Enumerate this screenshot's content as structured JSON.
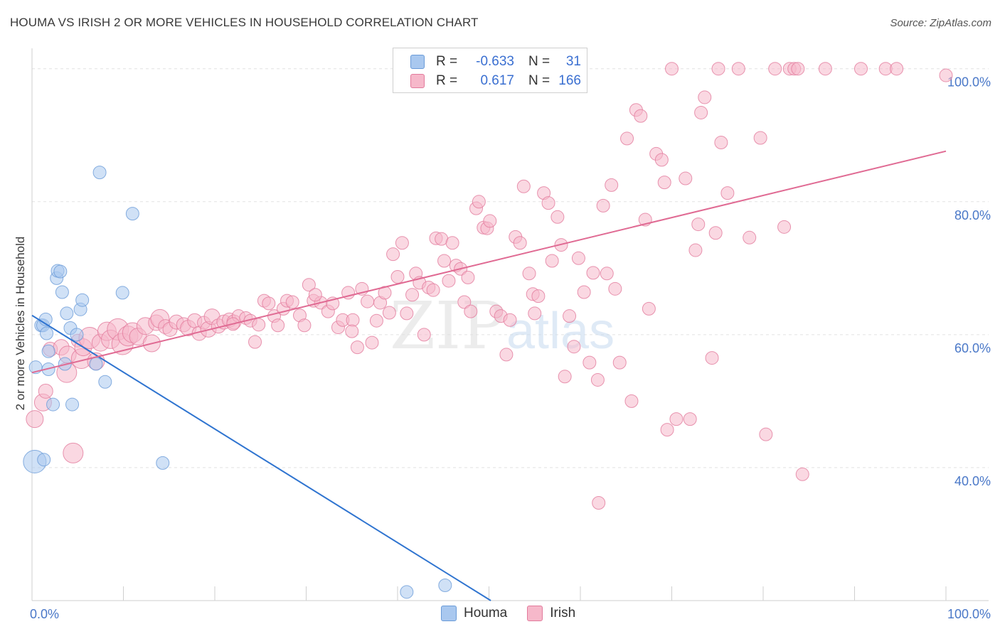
{
  "title": "HOUMA VS IRISH 2 OR MORE VEHICLES IN HOUSEHOLD CORRELATION CHART",
  "source": "Source: ZipAtlas.com",
  "watermark": {
    "zip": "ZIP",
    "atlas": "atlas"
  },
  "legend": {
    "rows": [
      {
        "series": "Houma",
        "r_label": "R =",
        "r_value": "-0.633",
        "n_label": "N =",
        "n_value": "31",
        "color": "#a9c8ef",
        "border": "#6a9bd8"
      },
      {
        "series": "Irish",
        "r_label": "R =",
        "r_value": "0.617",
        "n_label": "N =",
        "n_value": "166",
        "color": "#f6b8ca",
        "border": "#e27a9c"
      }
    ]
  },
  "bottom_legend": [
    {
      "label": "Houma",
      "color": "#a9c8ef",
      "border": "#6a9bd8"
    },
    {
      "label": "Irish",
      "color": "#f6b8ca",
      "border": "#e27a9c"
    }
  ],
  "chart_data": {
    "type": "scatter",
    "title": "HOUMA VS IRISH 2 OR MORE VEHICLES IN HOUSEHOLD CORRELATION CHART",
    "xlabel": "",
    "ylabel": "2 or more Vehicles in Household",
    "xlim": [
      0,
      100
    ],
    "ylim": [
      20,
      102
    ],
    "x_tick_labels": [
      "0.0%",
      "100.0%"
    ],
    "y_tick_labels": [
      "40.0%",
      "60.0%",
      "80.0%",
      "100.0%"
    ],
    "y_ticks": [
      40,
      60,
      80,
      100
    ],
    "grid": true,
    "legend_position": "top-center",
    "series": [
      {
        "name": "Houma",
        "color": "#a9c8ef",
        "stroke": "#6a9bd8",
        "line_color": "#2f74d0",
        "trend": {
          "x": [
            0,
            50.2
          ],
          "y": [
            62.9,
            20.0
          ]
        },
        "points": [
          [
            0.3,
            40.9,
            16
          ],
          [
            0.4,
            55.1,
            9
          ],
          [
            1.0,
            61.4,
            9
          ],
          [
            1.2,
            61.4,
            9
          ],
          [
            1.3,
            41.2,
            9
          ],
          [
            1.5,
            62.3,
            9
          ],
          [
            1.6,
            60.2,
            9
          ],
          [
            1.8,
            57.5,
            9
          ],
          [
            1.8,
            54.8,
            9
          ],
          [
            2.3,
            49.5,
            9
          ],
          [
            2.7,
            68.5,
            9
          ],
          [
            2.8,
            69.6,
            9
          ],
          [
            3.1,
            69.5,
            9
          ],
          [
            3.3,
            66.4,
            9
          ],
          [
            3.6,
            55.6,
            9
          ],
          [
            3.8,
            63.2,
            9
          ],
          [
            4.2,
            61.0,
            9
          ],
          [
            4.4,
            49.5,
            9
          ],
          [
            4.9,
            60.0,
            9
          ],
          [
            5.3,
            63.8,
            9
          ],
          [
            5.5,
            65.2,
            9
          ],
          [
            7.0,
            55.6,
            9
          ],
          [
            7.4,
            84.4,
            9
          ],
          [
            8.0,
            52.9,
            9
          ],
          [
            9.9,
            66.3,
            9
          ],
          [
            11.0,
            78.2,
            9
          ],
          [
            14.3,
            40.7,
            9
          ],
          [
            41.0,
            21.3,
            9
          ],
          [
            45.2,
            22.3,
            9
          ]
        ]
      },
      {
        "name": "Irish",
        "color": "#f6b8ca",
        "stroke": "#e27a9c",
        "line_color": "#e06a93",
        "trend": {
          "x": [
            0,
            100
          ],
          "y": [
            54.3,
            87.6
          ]
        },
        "points": [
          [
            0.3,
            47.3,
            12
          ],
          [
            1.2,
            49.8,
            12
          ],
          [
            1.5,
            51.5,
            10
          ],
          [
            2.0,
            57.8,
            10
          ],
          [
            3.2,
            58.1,
            11
          ],
          [
            3.8,
            54.3,
            14
          ],
          [
            3.9,
            57.0,
            12
          ],
          [
            4.5,
            42.2,
            14
          ],
          [
            5.0,
            59.1,
            9
          ],
          [
            5.4,
            56.4,
            14
          ],
          [
            5.6,
            58.1,
            12
          ],
          [
            6.3,
            59.5,
            15
          ],
          [
            7.0,
            56.0,
            12
          ],
          [
            7.5,
            58.8,
            12
          ],
          [
            8.2,
            60.5,
            13
          ],
          [
            8.6,
            59.3,
            13
          ],
          [
            9.4,
            60.8,
            15
          ],
          [
            9.9,
            58.6,
            15
          ],
          [
            10.5,
            59.8,
            14
          ],
          [
            11.0,
            60.3,
            14
          ],
          [
            11.6,
            59.7,
            12
          ],
          [
            12.4,
            61.3,
            12
          ],
          [
            13.1,
            58.7,
            12
          ],
          [
            13.6,
            61.8,
            11
          ],
          [
            14.0,
            62.4,
            13
          ],
          [
            14.6,
            61.2,
            10
          ],
          [
            15.1,
            60.8,
            10
          ],
          [
            15.8,
            61.9,
            10
          ],
          [
            16.6,
            61.5,
            10
          ],
          [
            17.1,
            61.0,
            11
          ],
          [
            17.8,
            62.1,
            10
          ],
          [
            18.3,
            60.2,
            10
          ],
          [
            18.8,
            61.8,
            9
          ],
          [
            19.3,
            60.8,
            11
          ],
          [
            19.7,
            62.7,
            11
          ],
          [
            20.4,
            61.3,
            10
          ],
          [
            21.0,
            61.9,
            10
          ],
          [
            21.6,
            62.2,
            10
          ],
          [
            22.1,
            61.9,
            10
          ],
          [
            22.6,
            62.8,
            9
          ],
          [
            22.0,
            61.6,
            9
          ],
          [
            23.4,
            62.5,
            9
          ],
          [
            23.9,
            62.1,
            9
          ],
          [
            24.4,
            58.9,
            9
          ],
          [
            24.8,
            61.5,
            9
          ],
          [
            25.4,
            65.1,
            9
          ],
          [
            25.9,
            64.7,
            9
          ],
          [
            26.5,
            62.8,
            9
          ],
          [
            26.9,
            61.4,
            9
          ],
          [
            27.5,
            63.9,
            9
          ],
          [
            27.9,
            65.1,
            9
          ],
          [
            28.5,
            64.9,
            9
          ],
          [
            29.3,
            62.9,
            9
          ],
          [
            29.8,
            61.4,
            9
          ],
          [
            30.3,
            67.5,
            9
          ],
          [
            30.8,
            65.1,
            9
          ],
          [
            31.6,
            64.8,
            9
          ],
          [
            32.4,
            63.5,
            9
          ],
          [
            32.9,
            64.7,
            9
          ],
          [
            33.5,
            61.1,
            9
          ],
          [
            34.0,
            62.2,
            9
          ],
          [
            34.6,
            66.3,
            9
          ],
          [
            35.1,
            62.2,
            9
          ],
          [
            35.6,
            58.1,
            9
          ],
          [
            36.1,
            66.9,
            9
          ],
          [
            36.7,
            65.0,
            9
          ],
          [
            37.2,
            58.8,
            9
          ],
          [
            37.7,
            62.1,
            9
          ],
          [
            38.1,
            64.8,
            9
          ],
          [
            38.6,
            66.3,
            9
          ],
          [
            39.1,
            63.3,
            9
          ],
          [
            39.5,
            72.1,
            9
          ],
          [
            40.0,
            68.7,
            9
          ],
          [
            40.5,
            73.8,
            9
          ],
          [
            41.0,
            63.2,
            9
          ],
          [
            41.6,
            66.0,
            9
          ],
          [
            42.0,
            69.2,
            9
          ],
          [
            42.4,
            67.8,
            9
          ],
          [
            42.9,
            60.0,
            9
          ],
          [
            43.4,
            67.1,
            9
          ],
          [
            43.9,
            66.7,
            9
          ],
          [
            44.2,
            74.5,
            9
          ],
          [
            44.8,
            74.4,
            9
          ],
          [
            45.1,
            71.1,
            9
          ],
          [
            45.6,
            68.1,
            9
          ],
          [
            46.0,
            73.8,
            9
          ],
          [
            46.4,
            70.4,
            9
          ],
          [
            46.9,
            69.9,
            9
          ],
          [
            47.3,
            64.9,
            9
          ],
          [
            47.7,
            68.6,
            9
          ],
          [
            48.0,
            63.5,
            9
          ],
          [
            48.6,
            79.0,
            9
          ],
          [
            48.9,
            80.0,
            9
          ],
          [
            49.4,
            76.1,
            9
          ],
          [
            49.8,
            76.0,
            9
          ],
          [
            50.1,
            77.1,
            9
          ],
          [
            50.8,
            63.5,
            9
          ],
          [
            51.3,
            62.8,
            9
          ],
          [
            51.9,
            57.0,
            9
          ],
          [
            52.3,
            62.2,
            9
          ],
          [
            52.9,
            74.7,
            9
          ],
          [
            53.4,
            73.8,
            9
          ],
          [
            53.8,
            82.3,
            9
          ],
          [
            54.4,
            69.2,
            9
          ],
          [
            54.8,
            66.1,
            9
          ],
          [
            55.4,
            65.8,
            9
          ],
          [
            56.0,
            81.3,
            9
          ],
          [
            56.5,
            79.8,
            9
          ],
          [
            56.9,
            71.1,
            9
          ],
          [
            57.5,
            77.7,
            9
          ],
          [
            57.9,
            73.5,
            9
          ],
          [
            58.3,
            53.7,
            9
          ],
          [
            58.8,
            62.8,
            9
          ],
          [
            59.3,
            58.2,
            9
          ],
          [
            59.8,
            71.5,
            9
          ],
          [
            60.4,
            66.4,
            9
          ],
          [
            61.0,
            55.8,
            9
          ],
          [
            61.4,
            69.3,
            9
          ],
          [
            61.9,
            53.2,
            9
          ],
          [
            62.5,
            79.4,
            9
          ],
          [
            62.9,
            69.2,
            9
          ],
          [
            63.4,
            82.5,
            9
          ],
          [
            63.8,
            66.9,
            9
          ],
          [
            64.3,
            55.8,
            9
          ],
          [
            65.1,
            89.5,
            9
          ],
          [
            65.6,
            50.0,
            9
          ],
          [
            66.1,
            93.8,
            9
          ],
          [
            66.6,
            92.9,
            9
          ],
          [
            67.1,
            77.3,
            9
          ],
          [
            67.5,
            63.9,
            9
          ],
          [
            68.3,
            87.2,
            9
          ],
          [
            68.9,
            86.3,
            9
          ],
          [
            69.2,
            82.9,
            9
          ],
          [
            69.5,
            45.7,
            9
          ],
          [
            70.0,
            100.0,
            9
          ],
          [
            70.5,
            47.3,
            9
          ],
          [
            71.5,
            83.5,
            9
          ],
          [
            72.0,
            47.3,
            9
          ],
          [
            72.6,
            72.7,
            9
          ],
          [
            72.9,
            76.6,
            9
          ],
          [
            73.2,
            93.4,
            9
          ],
          [
            73.6,
            95.7,
            9
          ],
          [
            74.4,
            56.5,
            9
          ],
          [
            74.8,
            75.3,
            9
          ],
          [
            75.1,
            100.0,
            9
          ],
          [
            75.4,
            88.9,
            9
          ],
          [
            76.1,
            81.3,
            9
          ],
          [
            77.3,
            100.0,
            9
          ],
          [
            78.5,
            74.6,
            9
          ],
          [
            79.7,
            89.6,
            9
          ],
          [
            80.3,
            45.0,
            9
          ],
          [
            81.3,
            100.0,
            9
          ],
          [
            82.3,
            76.2,
            9
          ],
          [
            82.9,
            100.0,
            9
          ],
          [
            83.4,
            100.0,
            9
          ],
          [
            83.8,
            100.0,
            9
          ],
          [
            84.3,
            39.0,
            9
          ],
          [
            86.8,
            100.0,
            9
          ],
          [
            90.7,
            100.0,
            9
          ],
          [
            93.4,
            100.0,
            9
          ],
          [
            94.6,
            100.0,
            9
          ],
          [
            62.0,
            34.7,
            9
          ],
          [
            100.0,
            99.0,
            9
          ],
          [
            55.0,
            63.2,
            9
          ],
          [
            35.0,
            60.5,
            9
          ],
          [
            31.0,
            66.0,
            9
          ]
        ]
      }
    ]
  }
}
